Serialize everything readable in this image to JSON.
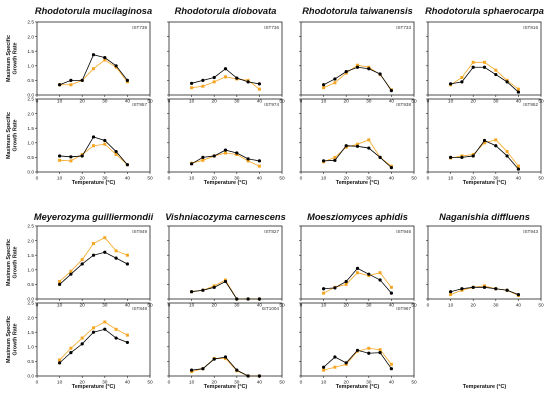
{
  "chart_data": {
    "type": "line",
    "x_label": "Temperature (°C)",
    "y_label_lines": [
      "Maximum Specific",
      "Growth Rate"
    ],
    "xlim": [
      0,
      50
    ],
    "ylim": [
      0,
      2.5
    ],
    "x_ticks": [
      0,
      10,
      20,
      30,
      40,
      50
    ],
    "y_ticks": [
      0,
      0.5,
      1.0,
      1.5,
      2.0,
      2.5
    ],
    "x_tick_labels": [
      "0",
      "10",
      "20",
      "30",
      "40",
      "50"
    ],
    "y_tick_labels": [
      "0.0",
      "0.5",
      "1.0",
      "1.5",
      "2.0",
      "2.5"
    ],
    "series_colors": {
      "measured": "#000000",
      "model": "#f5a623"
    },
    "species": [
      {
        "name": "Rhodotorula mucilaginosa",
        "panels": [
          {
            "strain": "IST739",
            "x": [
              10,
              15,
              20,
              25,
              30,
              35,
              40
            ],
            "black": [
              0.35,
              0.5,
              0.5,
              1.38,
              1.28,
              1.0,
              0.5
            ],
            "orange": [
              0.35,
              0.35,
              0.5,
              0.9,
              1.2,
              0.95,
              0.45
            ]
          },
          {
            "strain": "IST957",
            "x": [
              10,
              15,
              20,
              25,
              30,
              35,
              40
            ],
            "black": [
              0.55,
              0.52,
              0.55,
              1.2,
              1.08,
              0.7,
              0.25
            ],
            "orange": [
              0.4,
              0.38,
              0.6,
              0.9,
              0.95,
              0.6,
              0.25
            ]
          }
        ]
      },
      {
        "name": "Rhodotorula diobovata",
        "panels": [
          {
            "strain": "IST736",
            "x": [
              10,
              15,
              20,
              25,
              30,
              35,
              40
            ],
            "black": [
              0.4,
              0.5,
              0.6,
              0.9,
              0.58,
              0.45,
              0.38
            ],
            "orange": [
              0.25,
              0.3,
              0.45,
              0.62,
              0.55,
              0.5,
              0.2
            ]
          },
          {
            "strain": "IST974",
            "x": [
              10,
              15,
              20,
              25,
              30,
              35,
              40
            ],
            "black": [
              0.28,
              0.5,
              0.55,
              0.75,
              0.65,
              0.45,
              0.38
            ],
            "orange": [
              0.3,
              0.4,
              0.55,
              0.65,
              0.6,
              0.38,
              0.2
            ]
          }
        ]
      },
      {
        "name": "Rhodotorula taiwanensis",
        "panels": [
          {
            "strain": "IST733",
            "x": [
              10,
              15,
              20,
              25,
              30,
              35,
              40
            ],
            "black": [
              0.35,
              0.55,
              0.8,
              0.95,
              0.9,
              0.72,
              0.15
            ],
            "orange": [
              0.25,
              0.42,
              0.75,
              1.02,
              0.95,
              0.7,
              0.18
            ]
          },
          {
            "strain": "IST938",
            "x": [
              10,
              15,
              20,
              25,
              30,
              35,
              40
            ],
            "black": [
              0.38,
              0.4,
              0.9,
              0.88,
              0.82,
              0.5,
              0.15
            ],
            "orange": [
              0.35,
              0.5,
              0.85,
              0.95,
              1.1,
              0.5,
              0.2
            ]
          }
        ]
      },
      {
        "name": "Rhodotorula sphaerocarpa",
        "panels": [
          {
            "strain": "IST816",
            "x": [
              10,
              15,
              20,
              25,
              30,
              35,
              40
            ],
            "black": [
              0.38,
              0.45,
              0.95,
              0.95,
              0.7,
              0.45,
              0.1
            ],
            "orange": [
              0.35,
              0.6,
              1.12,
              1.12,
              0.85,
              0.5,
              0.2
            ]
          },
          {
            "strain": "IST952",
            "x": [
              10,
              15,
              20,
              25,
              30,
              35,
              40
            ],
            "black": [
              0.5,
              0.5,
              0.55,
              1.08,
              0.9,
              0.55,
              0.1
            ],
            "orange": [
              0.48,
              0.55,
              0.6,
              1.0,
              1.1,
              0.7,
              0.2
            ]
          }
        ]
      },
      {
        "name": "Meyerozyma guilliermondii",
        "panels": [
          {
            "strain": "IST849",
            "x": [
              10,
              15,
              20,
              25,
              30,
              35,
              40
            ],
            "black": [
              0.5,
              0.85,
              1.2,
              1.5,
              1.6,
              1.4,
              1.2
            ],
            "orange": [
              0.6,
              0.95,
              1.35,
              1.9,
              2.1,
              1.65,
              1.5
            ]
          },
          {
            "strain": "IST848",
            "x": [
              10,
              15,
              20,
              25,
              30,
              35,
              40
            ],
            "black": [
              0.45,
              0.8,
              1.1,
              1.5,
              1.6,
              1.3,
              1.15
            ],
            "orange": [
              0.55,
              0.95,
              1.3,
              1.65,
              1.85,
              1.6,
              1.4
            ]
          }
        ]
      },
      {
        "name": "Vishniacozyma carnescens",
        "panels": [
          {
            "strain": "IST827",
            "x": [
              10,
              15,
              20,
              25,
              30,
              35,
              40
            ],
            "black": [
              0.25,
              0.3,
              0.4,
              0.6,
              0.0,
              0.0,
              0.0
            ],
            "orange": [
              0.25,
              0.3,
              0.45,
              0.65,
              0.0,
              0.0,
              0.0
            ]
          },
          {
            "strain": "IST1004",
            "x": [
              10,
              15,
              20,
              25,
              30,
              35,
              40
            ],
            "black": [
              0.2,
              0.25,
              0.58,
              0.65,
              0.2,
              0.0,
              0.0
            ],
            "orange": [
              0.15,
              0.25,
              0.6,
              0.6,
              0.18,
              0.0,
              0.0
            ]
          }
        ]
      },
      {
        "name": "Moesziomyces aphidis",
        "panels": [
          {
            "strain": "IST946",
            "x": [
              10,
              15,
              20,
              25,
              30,
              35,
              40
            ],
            "black": [
              0.35,
              0.38,
              0.6,
              1.05,
              0.85,
              0.65,
              0.2
            ],
            "orange": [
              0.2,
              0.4,
              0.5,
              0.9,
              0.8,
              0.9,
              0.4
            ]
          },
          {
            "strain": "IST967",
            "x": [
              10,
              15,
              20,
              25,
              30,
              35,
              40
            ],
            "black": [
              0.3,
              0.65,
              0.45,
              0.88,
              0.78,
              0.8,
              0.25
            ],
            "orange": [
              0.2,
              0.3,
              0.4,
              0.85,
              0.95,
              0.9,
              0.4
            ]
          }
        ]
      },
      {
        "name": "Naganishia diffluens",
        "panels": [
          {
            "strain": "IST943",
            "x": [
              10,
              15,
              20,
              25,
              30,
              35,
              40
            ],
            "black": [
              0.25,
              0.35,
              0.4,
              0.4,
              0.35,
              0.3,
              0.15
            ],
            "orange": [
              0.15,
              0.3,
              0.4,
              0.45,
              0.35,
              0.3,
              0.12
            ]
          }
        ]
      }
    ]
  }
}
